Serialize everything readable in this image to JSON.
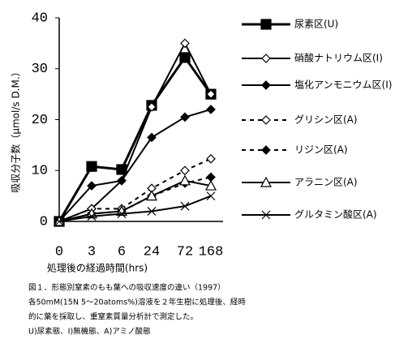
{
  "chart_data": {
    "type": "line",
    "x_label": "処理後の経過時間(hrs)",
    "y_label": "吸収分子数（μmol/s D.M.）",
    "categories": [
      "0",
      "3",
      "6",
      "24",
      "72",
      "168"
    ],
    "ylim": [
      0,
      40
    ],
    "yticks": [
      0,
      10,
      20,
      30,
      40
    ],
    "series": [
      {
        "name": "尿素区(U)",
        "color": "#000000",
        "marker": "square-filled",
        "dashed": false,
        "values": [
          0,
          10.8,
          10.2,
          22.8,
          32.2,
          25
        ]
      },
      {
        "name": "硝酸ナトリウム区(I)",
        "color": "#000000",
        "marker": "diamond-open",
        "dashed": false,
        "values": [
          0,
          2.5,
          8,
          22.5,
          35,
          25
        ]
      },
      {
        "name": "塩化アンモニウム区(I)",
        "color": "#000000",
        "marker": "diamond-filled",
        "dashed": false,
        "values": [
          0,
          7,
          8,
          16.5,
          20.5,
          22
        ]
      },
      {
        "name": "グリシン区(A)",
        "color": "#000000",
        "marker": "diamond-open",
        "dashed": true,
        "values": [
          0,
          2.5,
          2.5,
          6.5,
          10,
          12.3
        ]
      },
      {
        "name": "リジン区(A)",
        "color": "#000000",
        "marker": "diamond-filled",
        "dashed": true,
        "values": [
          0,
          1.5,
          2,
          5,
          7.5,
          8.7
        ]
      },
      {
        "name": "アラニン区(A)",
        "color": "#000000",
        "marker": "triangle-open",
        "dashed": false,
        "values": [
          0,
          1.5,
          2,
          5,
          8,
          7
        ]
      },
      {
        "name": "グルタミン酸区(A)",
        "color": "#000000",
        "marker": "x",
        "dashed": false,
        "values": [
          0,
          1,
          1.5,
          2,
          3,
          5
        ]
      }
    ],
    "caption": [
      "図１．形態別窒素のもも葉への吸収速度の違い（1997）",
      " 各50mM(15N 5～20atoms%)溶液を２年生樹に処理後、経時",
      "的に葉を採取し、重窒素質量分析計で測定した。",
      "U)尿素態、I)無機態、A)アミノ酸態"
    ]
  }
}
